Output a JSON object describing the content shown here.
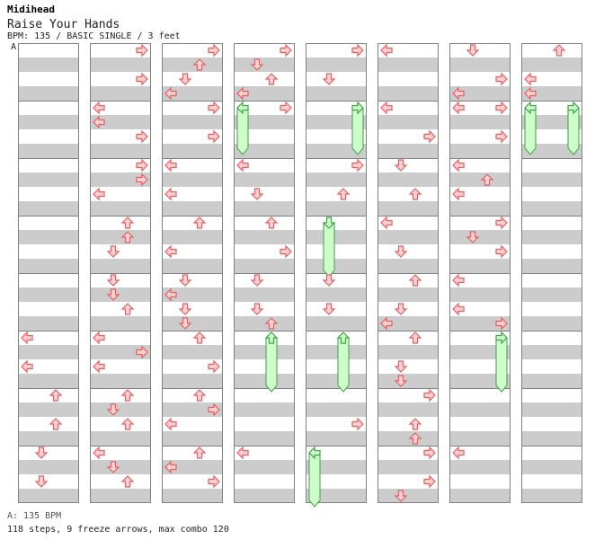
{
  "header": {
    "artist": "Midihead",
    "title": "Raise Your Hands",
    "meta": "BPM: 135 / BASIC SINGLE / 3 feet",
    "bpm_marker": "A"
  },
  "footer": {
    "bpm_legend": "A: 135 BPM",
    "stats": "118 steps, 9 freeze arrows, max combo 120"
  },
  "colors": {
    "arrow_fill": "#ffd0d0",
    "arrow_stroke": "#e06060",
    "freeze_fill": "#ccffcc",
    "freeze_stroke": "#40a040",
    "stripe": "#cccccc",
    "border": "#808080"
  },
  "chart_data": {
    "type": "step-chart",
    "columns": 8,
    "measures_per_column": 8,
    "beats_per_measure": 4,
    "lanes": [
      "left",
      "down",
      "up",
      "right"
    ],
    "notes": [
      {
        "col": 0,
        "m": 5,
        "b": 0,
        "lane": "left"
      },
      {
        "col": 0,
        "m": 5,
        "b": 2,
        "lane": "left"
      },
      {
        "col": 0,
        "m": 6,
        "b": 0,
        "lane": "up"
      },
      {
        "col": 0,
        "m": 6,
        "b": 2,
        "lane": "up"
      },
      {
        "col": 0,
        "m": 7,
        "b": 0,
        "lane": "down"
      },
      {
        "col": 0,
        "m": 7,
        "b": 2,
        "lane": "down"
      },
      {
        "col": 1,
        "m": 0,
        "b": 0,
        "lane": "right"
      },
      {
        "col": 1,
        "m": 0,
        "b": 2,
        "lane": "right"
      },
      {
        "col": 1,
        "m": 1,
        "b": 0,
        "lane": "left"
      },
      {
        "col": 1,
        "m": 1,
        "b": 1,
        "lane": "left"
      },
      {
        "col": 1,
        "m": 1,
        "b": 2,
        "lane": "right"
      },
      {
        "col": 1,
        "m": 2,
        "b": 0,
        "lane": "right"
      },
      {
        "col": 1,
        "m": 2,
        "b": 1,
        "lane": "right"
      },
      {
        "col": 1,
        "m": 2,
        "b": 2,
        "lane": "left"
      },
      {
        "col": 1,
        "m": 3,
        "b": 0,
        "lane": "up"
      },
      {
        "col": 1,
        "m": 3,
        "b": 1,
        "lane": "up"
      },
      {
        "col": 1,
        "m": 3,
        "b": 2,
        "lane": "down"
      },
      {
        "col": 1,
        "m": 4,
        "b": 0,
        "lane": "down"
      },
      {
        "col": 1,
        "m": 4,
        "b": 1,
        "lane": "down"
      },
      {
        "col": 1,
        "m": 4,
        "b": 2,
        "lane": "up"
      },
      {
        "col": 1,
        "m": 5,
        "b": 0,
        "lane": "left"
      },
      {
        "col": 1,
        "m": 5,
        "b": 1,
        "lane": "right"
      },
      {
        "col": 1,
        "m": 5,
        "b": 2,
        "lane": "left"
      },
      {
        "col": 1,
        "m": 6,
        "b": 0,
        "lane": "up"
      },
      {
        "col": 1,
        "m": 6,
        "b": 1,
        "lane": "down"
      },
      {
        "col": 1,
        "m": 6,
        "b": 2,
        "lane": "up"
      },
      {
        "col": 1,
        "m": 7,
        "b": 0,
        "lane": "left"
      },
      {
        "col": 1,
        "m": 7,
        "b": 1,
        "lane": "down"
      },
      {
        "col": 1,
        "m": 7,
        "b": 2,
        "lane": "up"
      },
      {
        "col": 2,
        "m": 0,
        "b": 0,
        "lane": "right"
      },
      {
        "col": 2,
        "m": 0,
        "b": 1,
        "lane": "up"
      },
      {
        "col": 2,
        "m": 0,
        "b": 2,
        "lane": "down"
      },
      {
        "col": 2,
        "m": 0,
        "b": 3,
        "lane": "left"
      },
      {
        "col": 2,
        "m": 1,
        "b": 0,
        "lane": "right"
      },
      {
        "col": 2,
        "m": 1,
        "b": 2,
        "lane": "right"
      },
      {
        "col": 2,
        "m": 2,
        "b": 0,
        "lane": "left"
      },
      {
        "col": 2,
        "m": 2,
        "b": 2,
        "lane": "left"
      },
      {
        "col": 2,
        "m": 3,
        "b": 0,
        "lane": "up"
      },
      {
        "col": 2,
        "m": 3,
        "b": 2,
        "lane": "left"
      },
      {
        "col": 2,
        "m": 4,
        "b": 0,
        "lane": "down"
      },
      {
        "col": 2,
        "m": 4,
        "b": 1,
        "lane": "left"
      },
      {
        "col": 2,
        "m": 4,
        "b": 2,
        "lane": "down"
      },
      {
        "col": 2,
        "m": 4,
        "b": 3,
        "lane": "down"
      },
      {
        "col": 2,
        "m": 5,
        "b": 0,
        "lane": "up"
      },
      {
        "col": 2,
        "m": 5,
        "b": 2,
        "lane": "right"
      },
      {
        "col": 2,
        "m": 6,
        "b": 0,
        "lane": "up"
      },
      {
        "col": 2,
        "m": 6,
        "b": 1,
        "lane": "right"
      },
      {
        "col": 2,
        "m": 6,
        "b": 2,
        "lane": "left"
      },
      {
        "col": 2,
        "m": 7,
        "b": 0,
        "lane": "up"
      },
      {
        "col": 2,
        "m": 7,
        "b": 1,
        "lane": "left"
      },
      {
        "col": 2,
        "m": 7,
        "b": 2,
        "lane": "right"
      },
      {
        "col": 3,
        "m": 0,
        "b": 0,
        "lane": "right"
      },
      {
        "col": 3,
        "m": 0,
        "b": 1,
        "lane": "down"
      },
      {
        "col": 3,
        "m": 0,
        "b": 2,
        "lane": "up"
      },
      {
        "col": 3,
        "m": 0,
        "b": 3,
        "lane": "left"
      },
      {
        "col": 3,
        "m": 1,
        "b": 0,
        "lane": "right"
      },
      {
        "col": 3,
        "m": 2,
        "b": 0,
        "lane": "left"
      },
      {
        "col": 3,
        "m": 2,
        "b": 2,
        "lane": "down"
      },
      {
        "col": 3,
        "m": 3,
        "b": 0,
        "lane": "up"
      },
      {
        "col": 3,
        "m": 3,
        "b": 2,
        "lane": "right"
      },
      {
        "col": 3,
        "m": 4,
        "b": 0,
        "lane": "down"
      },
      {
        "col": 3,
        "m": 4,
        "b": 2,
        "lane": "down"
      },
      {
        "col": 3,
        "m": 4,
        "b": 3,
        "lane": "up"
      },
      {
        "col": 3,
        "m": 7,
        "b": 0,
        "lane": "left"
      },
      {
        "col": 4,
        "m": 0,
        "b": 0,
        "lane": "right"
      },
      {
        "col": 4,
        "m": 0,
        "b": 2,
        "lane": "down"
      },
      {
        "col": 4,
        "m": 2,
        "b": 0,
        "lane": "right"
      },
      {
        "col": 4,
        "m": 2,
        "b": 2,
        "lane": "up"
      },
      {
        "col": 4,
        "m": 4,
        "b": 0,
        "lane": "down"
      },
      {
        "col": 4,
        "m": 4,
        "b": 2,
        "lane": "down"
      },
      {
        "col": 4,
        "m": 6,
        "b": 2,
        "lane": "right"
      },
      {
        "col": 5,
        "m": 0,
        "b": 0,
        "lane": "left"
      },
      {
        "col": 5,
        "m": 1,
        "b": 0,
        "lane": "left"
      },
      {
        "col": 5,
        "m": 1,
        "b": 2,
        "lane": "right"
      },
      {
        "col": 5,
        "m": 2,
        "b": 0,
        "lane": "down"
      },
      {
        "col": 5,
        "m": 2,
        "b": 2,
        "lane": "up"
      },
      {
        "col": 5,
        "m": 3,
        "b": 0,
        "lane": "left"
      },
      {
        "col": 5,
        "m": 3,
        "b": 2,
        "lane": "down"
      },
      {
        "col": 5,
        "m": 4,
        "b": 0,
        "lane": "up"
      },
      {
        "col": 5,
        "m": 4,
        "b": 2,
        "lane": "down"
      },
      {
        "col": 5,
        "m": 4,
        "b": 3,
        "lane": "left"
      },
      {
        "col": 5,
        "m": 5,
        "b": 0,
        "lane": "up"
      },
      {
        "col": 5,
        "m": 5,
        "b": 2,
        "lane": "down"
      },
      {
        "col": 5,
        "m": 5,
        "b": 3,
        "lane": "down"
      },
      {
        "col": 5,
        "m": 6,
        "b": 0,
        "lane": "right"
      },
      {
        "col": 5,
        "m": 6,
        "b": 2,
        "lane": "up"
      },
      {
        "col": 5,
        "m": 6,
        "b": 3,
        "lane": "up"
      },
      {
        "col": 5,
        "m": 7,
        "b": 0,
        "lane": "right"
      },
      {
        "col": 5,
        "m": 7,
        "b": 2,
        "lane": "right"
      },
      {
        "col": 5,
        "m": 7,
        "b": 3,
        "lane": "down"
      },
      {
        "col": 6,
        "m": 0,
        "b": 0,
        "lane": "down"
      },
      {
        "col": 6,
        "m": 0,
        "b": 2,
        "lane": "right"
      },
      {
        "col": 6,
        "m": 0,
        "b": 3,
        "lane": "left"
      },
      {
        "col": 6,
        "m": 1,
        "b": 0,
        "lane": "left"
      },
      {
        "col": 6,
        "m": 1,
        "b": 0,
        "lane": "right"
      },
      {
        "col": 6,
        "m": 1,
        "b": 2,
        "lane": "right"
      },
      {
        "col": 6,
        "m": 2,
        "b": 0,
        "lane": "left"
      },
      {
        "col": 6,
        "m": 2,
        "b": 1,
        "lane": "up"
      },
      {
        "col": 6,
        "m": 2,
        "b": 2,
        "lane": "left"
      },
      {
        "col": 6,
        "m": 3,
        "b": 0,
        "lane": "right"
      },
      {
        "col": 6,
        "m": 3,
        "b": 1,
        "lane": "down"
      },
      {
        "col": 6,
        "m": 3,
        "b": 2,
        "lane": "right"
      },
      {
        "col": 6,
        "m": 4,
        "b": 0,
        "lane": "left"
      },
      {
        "col": 6,
        "m": 4,
        "b": 2,
        "lane": "left"
      },
      {
        "col": 6,
        "m": 4,
        "b": 3,
        "lane": "right"
      },
      {
        "col": 6,
        "m": 7,
        "b": 0,
        "lane": "left"
      },
      {
        "col": 7,
        "m": 0,
        "b": 0,
        "lane": "up"
      },
      {
        "col": 7,
        "m": 0,
        "b": 2,
        "lane": "left"
      },
      {
        "col": 7,
        "m": 0,
        "b": 3,
        "lane": "left"
      }
    ],
    "freezes": [
      {
        "col": 3,
        "lane": "left",
        "start": [
          1,
          0
        ],
        "end": [
          1,
          3
        ]
      },
      {
        "col": 3,
        "lane": "up",
        "start": [
          5,
          0
        ],
        "end": [
          5,
          3.5
        ]
      },
      {
        "col": 4,
        "lane": "right",
        "start": [
          1,
          0
        ],
        "end": [
          1,
          3
        ]
      },
      {
        "col": 4,
        "lane": "down",
        "start": [
          3,
          0
        ],
        "end": [
          3,
          3.5
        ]
      },
      {
        "col": 4,
        "lane": "up",
        "start": [
          5,
          0
        ],
        "end": [
          5,
          3.5
        ]
      },
      {
        "col": 4,
        "lane": "left",
        "start": [
          7,
          0
        ],
        "end": [
          7,
          3.5
        ]
      },
      {
        "col": 6,
        "lane": "right",
        "start": [
          5,
          0
        ],
        "end": [
          5,
          3.5
        ]
      },
      {
        "col": 7,
        "lane": "left",
        "start": [
          1,
          0
        ],
        "end": [
          1,
          3
        ]
      },
      {
        "col": 7,
        "lane": "right",
        "start": [
          1,
          0
        ],
        "end": [
          1,
          3
        ]
      }
    ]
  }
}
